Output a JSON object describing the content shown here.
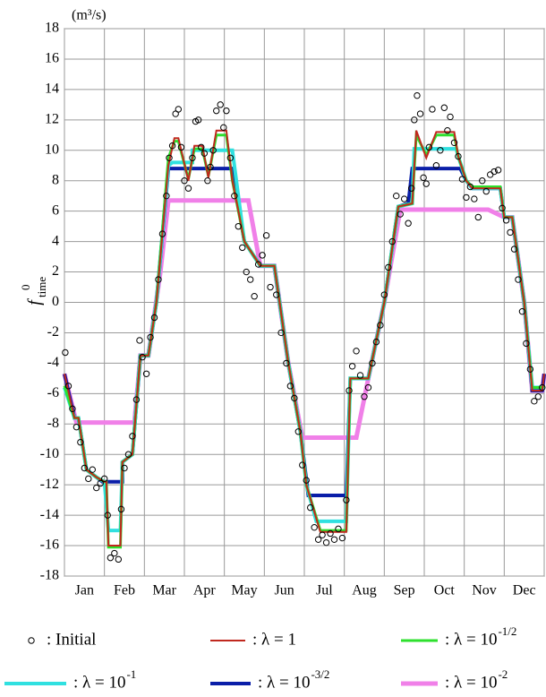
{
  "chart_data": {
    "type": "line",
    "unit": "(m³/s)",
    "ylabel": "f",
    "ylabel_sup": "0",
    "ylabel_sub": "time",
    "categories": [
      "Jan",
      "Feb",
      "Mar",
      "Apr",
      "May",
      "Jun",
      "Jul",
      "Aug",
      "Sep",
      "Oct",
      "Nov",
      "Dec"
    ],
    "xlim": [
      0,
      12
    ],
    "xticks": [
      0,
      1,
      2,
      3,
      4,
      5,
      6,
      7,
      8,
      9,
      10,
      11,
      12
    ],
    "ylim": [
      -18,
      18
    ],
    "yticks": [
      18,
      16,
      14,
      12,
      10,
      8,
      6,
      4,
      2,
      0,
      -2,
      -4,
      -6,
      -8,
      -10,
      -12,
      -14,
      -16,
      -18
    ],
    "grid": true,
    "series": [
      {
        "name": ": Initial",
        "style": "circle",
        "color": "#000000",
        "x": [
          0.02,
          0.1,
          0.2,
          0.3,
          0.4,
          0.5,
          0.6,
          0.7,
          0.8,
          0.9,
          1.0,
          1.08,
          1.15,
          1.25,
          1.35,
          1.42,
          1.5,
          1.6,
          1.7,
          1.8,
          1.88,
          1.95,
          2.05,
          2.15,
          2.25,
          2.35,
          2.45,
          2.55,
          2.62,
          2.7,
          2.78,
          2.85,
          2.92,
          3.0,
          3.1,
          3.2,
          3.28,
          3.35,
          3.42,
          3.5,
          3.58,
          3.65,
          3.72,
          3.8,
          3.9,
          3.98,
          4.05,
          4.15,
          4.25,
          4.35,
          4.45,
          4.55,
          4.65,
          4.75,
          4.85,
          4.95,
          5.05,
          5.15,
          5.3,
          5.42,
          5.55,
          5.65,
          5.75,
          5.85,
          5.95,
          6.05,
          6.15,
          6.25,
          6.35,
          6.45,
          6.55,
          6.65,
          6.75,
          6.85,
          6.95,
          7.05,
          7.12,
          7.2,
          7.3,
          7.4,
          7.5,
          7.6,
          7.7,
          7.8,
          7.9,
          8.0,
          8.1,
          8.2,
          8.3,
          8.4,
          8.5,
          8.6,
          8.68,
          8.75,
          8.82,
          8.9,
          8.98,
          9.05,
          9.12,
          9.2,
          9.3,
          9.4,
          9.5,
          9.58,
          9.65,
          9.75,
          9.85,
          9.95,
          10.05,
          10.15,
          10.25,
          10.35,
          10.45,
          10.55,
          10.65,
          10.75,
          10.85,
          10.95,
          11.05,
          11.15,
          11.25,
          11.35,
          11.45,
          11.55,
          11.65,
          11.75,
          11.85,
          11.95
        ],
        "values": [
          -3.3,
          -5.5,
          -7,
          -8.2,
          -9.2,
          -10.9,
          -11.6,
          -11,
          -12.2,
          -11.9,
          -11.6,
          -14,
          -16.8,
          -16.5,
          -16.9,
          -13.6,
          -10.9,
          -10,
          -8.8,
          -6.4,
          -2.5,
          -3.6,
          -4.7,
          -2.3,
          -1,
          1.5,
          4.5,
          7,
          9.5,
          10.3,
          12.4,
          12.7,
          10.2,
          8,
          7.5,
          9.5,
          11.9,
          12,
          10.2,
          9.8,
          8,
          8.9,
          10,
          12.6,
          13,
          11.5,
          12.6,
          9.5,
          7,
          5,
          3.6,
          2,
          1.5,
          0.4,
          2.5,
          3.1,
          4.4,
          1,
          0.5,
          -2,
          -4,
          -5.5,
          -6.3,
          -8.5,
          -10.7,
          -11.7,
          -13.5,
          -14.8,
          -15.6,
          -15.3,
          -15.8,
          -15.2,
          -15.6,
          -14.9,
          -15.5,
          -13,
          -5.8,
          -4.2,
          -3.2,
          -4.8,
          -6.2,
          -5.6,
          -4,
          -2.6,
          -1.5,
          0.5,
          2.3,
          4,
          7,
          5.8,
          6.8,
          5.2,
          7.5,
          12,
          13.6,
          12.4,
          8.2,
          7.8,
          10.2,
          12.7,
          9,
          10,
          12.8,
          11.3,
          12.2,
          10.5,
          9.6,
          8.1,
          6.9,
          7.6,
          6.8,
          5.6,
          8,
          7.3,
          8.4,
          8.6,
          8.7,
          6.2,
          5.4,
          4.6,
          3.5,
          1.5,
          -0.6,
          -2.7,
          -4.4,
          -6.5,
          -6.2,
          -5.6
        ]
      },
      {
        "name": ": λ = 1",
        "style": "line",
        "color": "#c0281e",
        "x": [
          0,
          0.25,
          0.35,
          0.55,
          0.8,
          1.0,
          1.05,
          1.1,
          1.4,
          1.45,
          1.7,
          1.9,
          2.1,
          2.3,
          2.6,
          2.75,
          2.85,
          3.1,
          3.25,
          3.45,
          3.6,
          3.8,
          4.05,
          4.2,
          4.5,
          4.9,
          5.25,
          5.6,
          5.9,
          6.05,
          6.4,
          7.05,
          7.15,
          7.6,
          8.0,
          8.35,
          8.7,
          8.8,
          9.05,
          9.3,
          9.75,
          9.85,
          10.05,
          10.2,
          10.9,
          11.0,
          11.2,
          11.5,
          11.7,
          11.95,
          12
        ],
        "values": [
          -4.7,
          -7.6,
          -7.6,
          -11,
          -11.5,
          -11.8,
          -11.8,
          -16,
          -16,
          -10.5,
          -10,
          -3.5,
          -3.5,
          0,
          9,
          10.8,
          10.8,
          8,
          10.3,
          10.3,
          8.2,
          11.3,
          11.3,
          8,
          4,
          2.4,
          2.4,
          -4,
          -8.5,
          -12,
          -15.1,
          -15.1,
          -5,
          -5,
          0,
          6.3,
          6.5,
          11.3,
          9.5,
          11.2,
          11.2,
          9.6,
          8,
          7.5,
          7.5,
          5.6,
          5.6,
          0,
          -5.8,
          -5.8,
          -4.7
        ]
      },
      {
        "name": ": λ = 10",
        "exponent": "-1/2",
        "style": "line",
        "color": "#2ee02e",
        "x": [
          0,
          0.25,
          0.35,
          0.55,
          0.8,
          1.0,
          1.05,
          1.1,
          1.4,
          1.45,
          1.7,
          1.9,
          2.1,
          2.3,
          2.6,
          2.75,
          2.85,
          3.1,
          3.25,
          3.45,
          3.6,
          3.8,
          4.05,
          4.2,
          4.5,
          4.9,
          5.25,
          5.6,
          5.9,
          6.05,
          6.4,
          7.05,
          7.15,
          7.6,
          8.0,
          8.35,
          8.7,
          8.8,
          9.05,
          9.3,
          9.75,
          9.85,
          10.05,
          10.2,
          10.9,
          11.0,
          11.2,
          11.5,
          11.7,
          11.95,
          12
        ],
        "values": [
          -5.5,
          -7.6,
          -7.6,
          -11,
          -11.5,
          -11.8,
          -11.8,
          -16.1,
          -16.1,
          -10.5,
          -10,
          -3.5,
          -3.5,
          0,
          9.5,
          10.6,
          10.6,
          8.1,
          10.1,
          10.1,
          8.3,
          11,
          11,
          8,
          4,
          2.4,
          2.4,
          -4,
          -8.5,
          -12,
          -15,
          -15,
          -5,
          -5,
          0,
          6.3,
          6.5,
          11,
          9.7,
          11,
          11,
          9.6,
          8,
          7.6,
          7.6,
          5.6,
          5.6,
          0,
          -5.6,
          -5.6,
          -5.5
        ]
      },
      {
        "name": ": λ = 10",
        "exponent": "-1",
        "style": "line",
        "color": "#30e0e0",
        "x": [
          0,
          0.25,
          0.35,
          0.55,
          0.8,
          1.0,
          1.1,
          1.4,
          1.45,
          1.7,
          1.9,
          2.1,
          2.3,
          2.6,
          2.7,
          3.2,
          3.2,
          4.2,
          4.5,
          4.9,
          5.25,
          5.6,
          5.9,
          6.05,
          6.3,
          7.05,
          7.15,
          7.6,
          8.0,
          8.35,
          8.7,
          8.75,
          9.8,
          9.85,
          10.05,
          10.2,
          10.9,
          11.0,
          11.2,
          11.5,
          11.7,
          11.95,
          12
        ],
        "values": [
          -5.6,
          -7.6,
          -7.6,
          -11,
          -11.5,
          -11.8,
          -15,
          -15,
          -10.5,
          -10,
          -3.5,
          -3.5,
          0,
          9,
          9.2,
          9.2,
          10,
          10,
          4,
          2.4,
          2.4,
          -4,
          -8.5,
          -12,
          -14.4,
          -14.4,
          -5,
          -5,
          0,
          6.3,
          6.5,
          10.1,
          10.1,
          9.6,
          8,
          7.5,
          7.5,
          5.6,
          5.6,
          0,
          -5.6,
          -5.6,
          -5.6
        ]
      },
      {
        "name": ": λ = 10",
        "exponent": "-3/2",
        "style": "line",
        "color": "#0a1ea8",
        "x": [
          0,
          0.25,
          0.35,
          0.55,
          0.95,
          1.45,
          1.45,
          1.7,
          1.9,
          2.1,
          2.3,
          2.6,
          4.2,
          4.5,
          4.9,
          5.25,
          5.6,
          5.9,
          6.1,
          7.05,
          7.15,
          7.6,
          8.0,
          8.35,
          8.6,
          8.7,
          9.9,
          10.05,
          10.2,
          10.9,
          11.0,
          11.2,
          11.5,
          11.7,
          11.95,
          12
        ],
        "values": [
          -4.7,
          -7.6,
          -7.6,
          -11,
          -11.8,
          -11.8,
          -10.5,
          -10,
          -3.5,
          -3.5,
          0,
          8.8,
          8.8,
          4,
          2.4,
          2.4,
          -4,
          -8.5,
          -12.7,
          -12.7,
          -5,
          -5,
          0,
          6.3,
          6.5,
          8.8,
          8.8,
          8,
          7.5,
          7.5,
          5.6,
          5.6,
          0,
          -5.8,
          -5.8,
          -4.7
        ]
      },
      {
        "name": ": λ = 10",
        "exponent": "-2",
        "style": "line",
        "color": "#f080e8",
        "x": [
          0,
          0.3,
          1.75,
          1.9,
          2.1,
          2.4,
          2.6,
          4.6,
          4.9,
          5.25,
          5.6,
          5.95,
          7.3,
          7.6,
          8.0,
          8.4,
          10.6,
          11.0,
          11.2,
          11.5,
          11.7,
          11.95,
          12
        ],
        "values": [
          -4.7,
          -7.9,
          -7.9,
          -3.5,
          -3.5,
          2,
          6.7,
          6.7,
          2.4,
          2.4,
          -4,
          -8.9,
          -8.9,
          -5,
          0,
          6.1,
          6.1,
          5.6,
          5.6,
          0,
          -5.8,
          -5.8,
          -4.7
        ]
      }
    ]
  }
}
